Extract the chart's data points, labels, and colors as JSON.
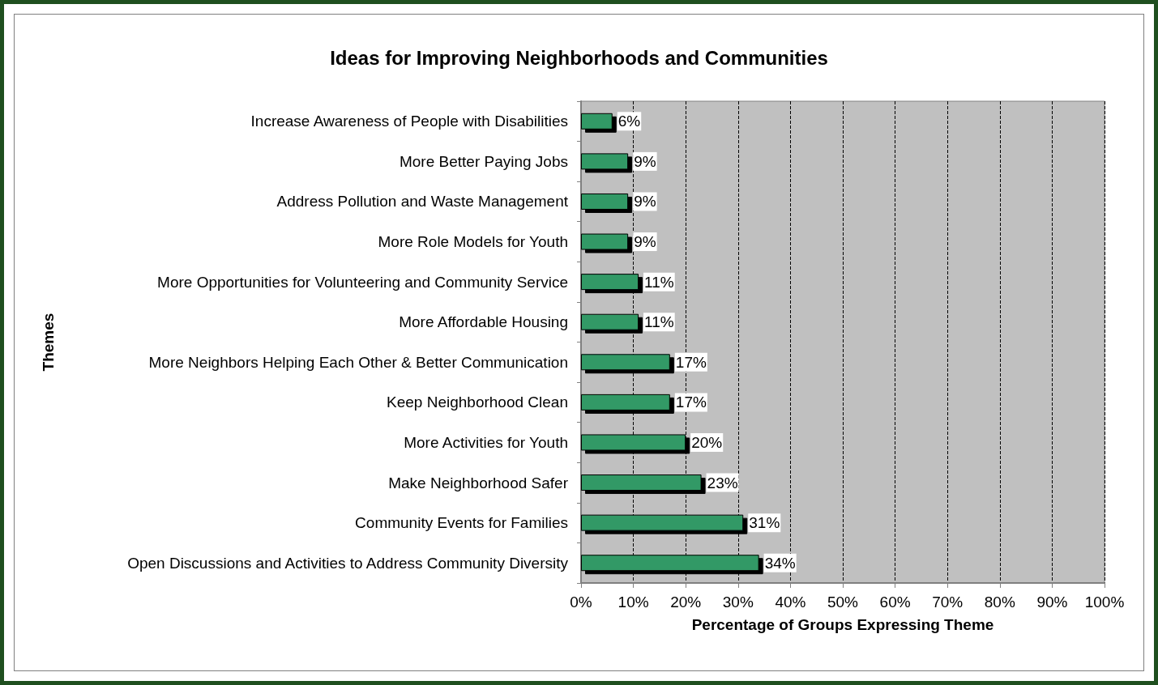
{
  "chart_data": {
    "type": "bar",
    "orientation": "horizontal",
    "title": "Ideas for Improving Neighborhoods and Communities",
    "xlabel": "Percentage of Groups Expressing Theme",
    "ylabel": "Themes",
    "categories": [
      "Increase Awareness of People with Disabilities",
      "More Better Paying Jobs",
      "Address Pollution and Waste Management",
      "More Role Models for Youth",
      "More Opportunities for Volunteering and Community Service",
      "More Affordable Housing",
      "More Neighbors Helping Each Other & Better Communication",
      "Keep Neighborhood Clean",
      "More Activities for Youth",
      "Make Neighborhood Safer",
      "Community Events for Families",
      "Open Discussions and Activities to Address Community Diversity"
    ],
    "values": [
      6,
      9,
      9,
      9,
      11,
      11,
      17,
      17,
      20,
      23,
      31,
      34
    ],
    "value_labels": [
      "6%",
      "9%",
      "9%",
      "9%",
      "11%",
      "11%",
      "17%",
      "17%",
      "20%",
      "23%",
      "31%",
      "34%"
    ],
    "color": "#339966",
    "xlim": [
      0,
      100
    ],
    "xticks": [
      {
        "value": 0,
        "label": "0%"
      },
      {
        "value": 10,
        "label": "10%"
      },
      {
        "value": 20,
        "label": "20%"
      },
      {
        "value": 30,
        "label": "30%"
      },
      {
        "value": 40,
        "label": "40%"
      },
      {
        "value": 50,
        "label": "50%"
      },
      {
        "value": 60,
        "label": "60%"
      },
      {
        "value": 70,
        "label": "70%"
      },
      {
        "value": 80,
        "label": "80%"
      },
      {
        "value": 90,
        "label": "90%"
      },
      {
        "value": 100,
        "label": "100%"
      }
    ],
    "grid": "x"
  }
}
